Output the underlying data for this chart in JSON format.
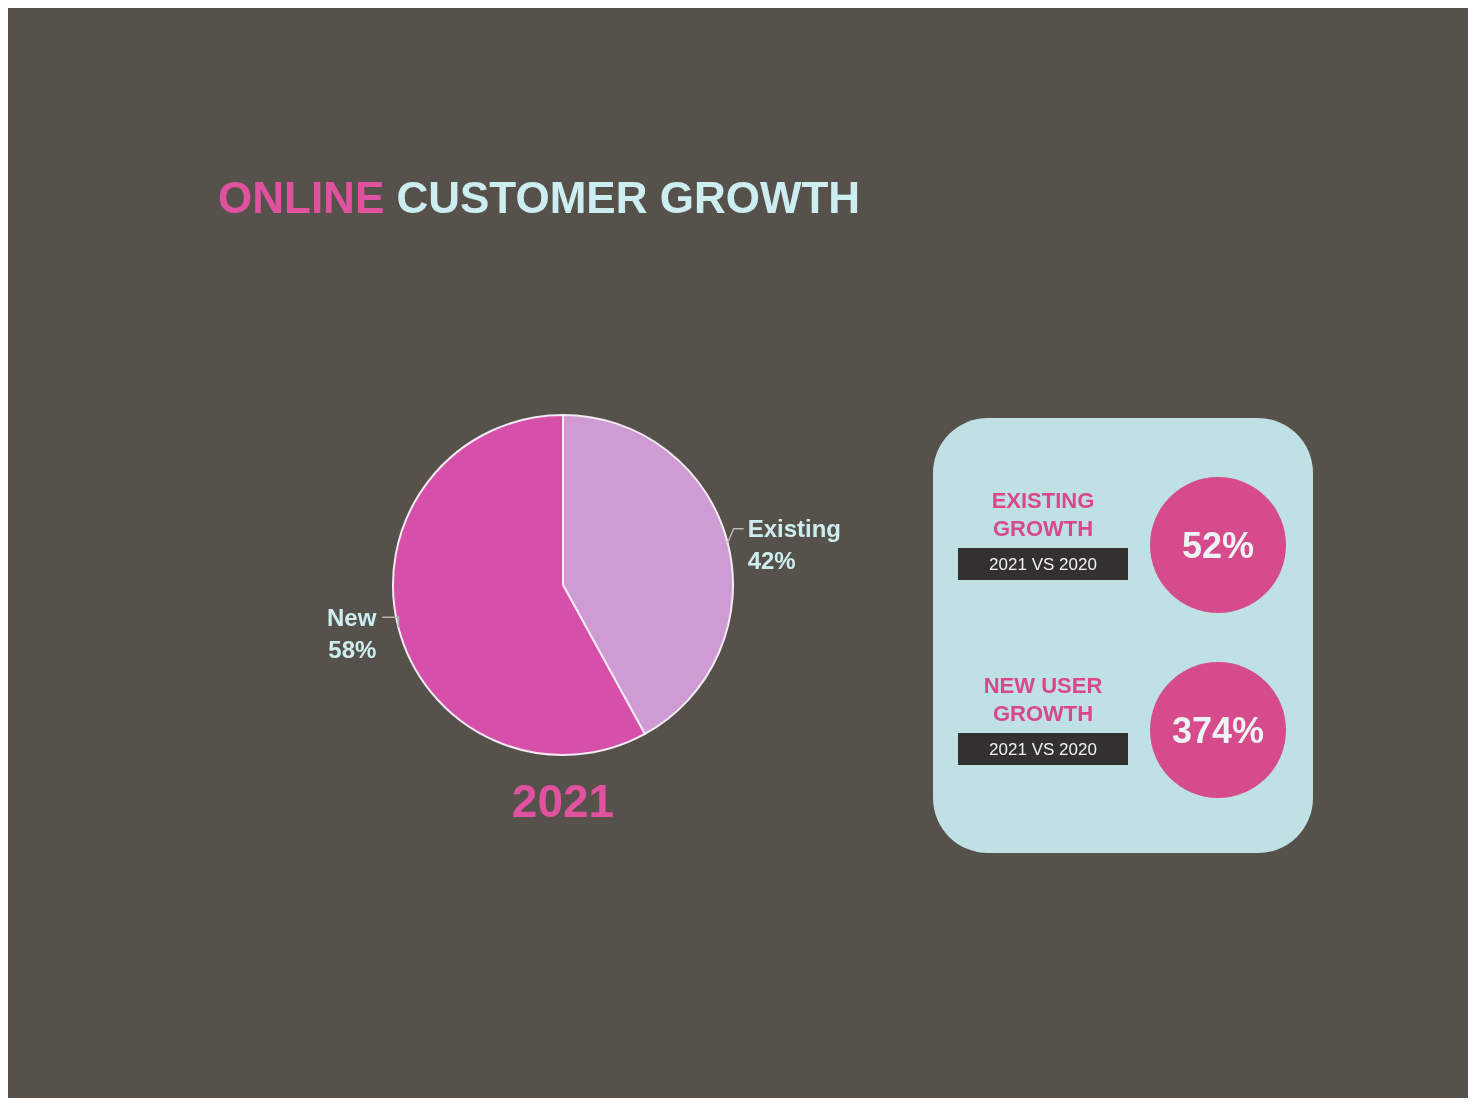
{
  "chart_data": [
    {
      "type": "pie",
      "title": "ONLINE CUSTOMER GROWTH",
      "categories": [
        "Existing",
        "New"
      ],
      "values": [
        42,
        58
      ],
      "colors": [
        "#cf9bd3",
        "#d64fa8"
      ],
      "value_labels": [
        "42%",
        "58%"
      ],
      "annotations": [
        "2021"
      ]
    },
    {
      "type": "other",
      "categories": [
        "EXISTING GROWTH",
        "NEW USER GROWTH"
      ],
      "value_labels": [
        "52%",
        "374%"
      ],
      "annotations": [
        "2021 VS 2020",
        "2021 VS 2020"
      ]
    }
  ]
}
